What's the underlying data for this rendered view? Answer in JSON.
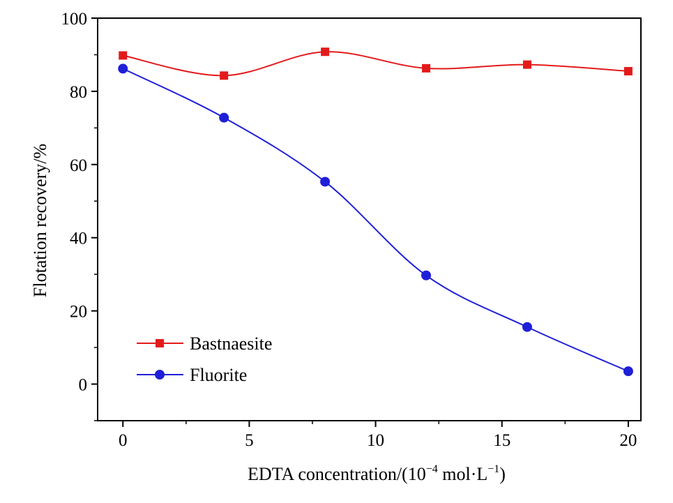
{
  "chart_data": {
    "type": "line",
    "title": "",
    "xlabel": {
      "prefix": "EDTA concentration/(10",
      "exp1": "−4",
      "middle": " mol·L",
      "exp2": "−1",
      "suffix": ")"
    },
    "ylabel": "Flotation recovery/%",
    "xlim": [
      -1,
      20.5
    ],
    "ylim": [
      -10,
      100
    ],
    "xticks": [
      0,
      5,
      10,
      15,
      20
    ],
    "yticks": [
      0,
      20,
      40,
      60,
      80,
      100
    ],
    "x_minor_ticks": [
      2.5,
      7.5,
      12.5,
      17.5
    ],
    "y_minor_ticks": [
      -10,
      10,
      30,
      50,
      70,
      90
    ],
    "grid": false,
    "legend_position": "lower-left",
    "smooth": true,
    "series": [
      {
        "name": "Bastnaesite",
        "color": "#e31a1c",
        "marker": "square",
        "x": [
          0,
          4,
          8,
          12,
          16,
          20
        ],
        "y": [
          89.8,
          84.3,
          90.8,
          86.3,
          87.3,
          85.5
        ]
      },
      {
        "name": "Fluorite",
        "color": "#1f1fd8",
        "marker": "circle",
        "x": [
          0,
          4,
          8,
          12,
          16,
          20
        ],
        "y": [
          86.2,
          72.8,
          55.3,
          29.7,
          15.6,
          3.5
        ]
      }
    ]
  }
}
